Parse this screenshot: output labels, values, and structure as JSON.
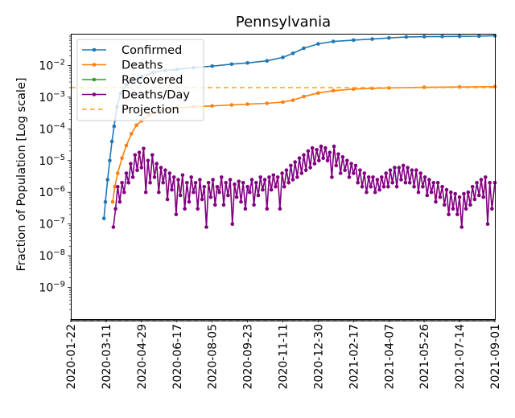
{
  "chart_data": {
    "type": "line",
    "title": "Pennsylvania",
    "xlabel": "",
    "ylabel": "Fraction of Population [Log scale]",
    "yscale": "log",
    "ylim": [
      1e-10,
      0.1
    ],
    "x_range": [
      "2020-01-22",
      "2021-09-01"
    ],
    "x_ticks": [
      "2020-01-22",
      "2020-03-11",
      "2020-04-29",
      "2020-06-17",
      "2020-08-05",
      "2020-09-23",
      "2020-11-11",
      "2020-12-30",
      "2021-02-17",
      "2021-04-07",
      "2021-05-26",
      "2021-07-14",
      "2021-09-01"
    ],
    "y_ticks": [
      {
        "value": 1e-09,
        "base": "10",
        "exp": "−9"
      },
      {
        "value": 1e-08,
        "base": "10",
        "exp": "−8"
      },
      {
        "value": 1e-07,
        "base": "10",
        "exp": "−7"
      },
      {
        "value": 1e-06,
        "base": "10",
        "exp": "−6"
      },
      {
        "value": 1e-05,
        "base": "10",
        "exp": "−5"
      },
      {
        "value": 0.0001,
        "base": "10",
        "exp": "−4"
      },
      {
        "value": 0.001,
        "base": "10",
        "exp": "−3"
      },
      {
        "value": 0.01,
        "base": "10",
        "exp": "−2"
      }
    ],
    "legend_position": "top-left",
    "series": [
      {
        "name": "Confirmed",
        "color": "#1f77b4",
        "style": "line-marker",
        "points": [
          [
            "2020-03-08",
            1.5e-07
          ],
          [
            "2020-03-10",
            5e-07
          ],
          [
            "2020-03-13",
            2.5e-06
          ],
          [
            "2020-03-16",
            1e-05
          ],
          [
            "2020-03-19",
            4e-05
          ],
          [
            "2020-03-22",
            0.00012
          ],
          [
            "2020-03-26",
            0.0005
          ],
          [
            "2020-03-31",
            0.0013
          ],
          [
            "2020-04-08",
            0.0025
          ],
          [
            "2020-04-18",
            0.0035
          ],
          [
            "2020-04-29",
            0.0045
          ],
          [
            "2020-05-15",
            0.006
          ],
          [
            "2020-06-01",
            0.007
          ],
          [
            "2020-06-17",
            0.0075
          ],
          [
            "2020-07-10",
            0.0085
          ],
          [
            "2020-08-05",
            0.0095
          ],
          [
            "2020-09-01",
            0.011
          ],
          [
            "2020-09-23",
            0.012
          ],
          [
            "2020-10-20",
            0.014
          ],
          [
            "2020-11-11",
            0.018
          ],
          [
            "2020-11-25",
            0.024
          ],
          [
            "2020-12-10",
            0.035
          ],
          [
            "2020-12-30",
            0.048
          ],
          [
            "2021-01-20",
            0.057
          ],
          [
            "2021-02-17",
            0.063
          ],
          [
            "2021-03-15",
            0.068
          ],
          [
            "2021-04-07",
            0.074
          ],
          [
            "2021-05-01",
            0.079
          ],
          [
            "2021-05-26",
            0.081
          ],
          [
            "2021-06-20",
            0.082
          ],
          [
            "2021-07-14",
            0.083
          ],
          [
            "2021-08-10",
            0.084
          ],
          [
            "2021-09-01",
            0.087
          ]
        ]
      },
      {
        "name": "Deaths",
        "color": "#ff7f0e",
        "style": "line-marker",
        "points": [
          [
            "2020-03-20",
            5e-07
          ],
          [
            "2020-03-23",
            1.5e-06
          ],
          [
            "2020-03-27",
            4e-06
          ],
          [
            "2020-04-02",
            1.2e-05
          ],
          [
            "2020-04-08",
            3e-05
          ],
          [
            "2020-04-15",
            7e-05
          ],
          [
            "2020-04-22",
            0.00013
          ],
          [
            "2020-04-29",
            0.00018
          ],
          [
            "2020-05-10",
            0.00028
          ],
          [
            "2020-05-25",
            0.00038
          ],
          [
            "2020-06-17",
            0.00045
          ],
          [
            "2020-07-10",
            0.0005
          ],
          [
            "2020-08-05",
            0.00053
          ],
          [
            "2020-09-01",
            0.00057
          ],
          [
            "2020-09-23",
            0.0006
          ],
          [
            "2020-10-20",
            0.00064
          ],
          [
            "2020-11-11",
            0.0007
          ],
          [
            "2020-11-25",
            0.0008
          ],
          [
            "2020-12-10",
            0.00105
          ],
          [
            "2020-12-30",
            0.00135
          ],
          [
            "2021-01-20",
            0.0016
          ],
          [
            "2021-02-17",
            0.0018
          ],
          [
            "2021-03-15",
            0.0019
          ],
          [
            "2021-04-07",
            0.00195
          ],
          [
            "2021-05-26",
            0.00205
          ],
          [
            "2021-07-14",
            0.0021
          ],
          [
            "2021-09-01",
            0.00215
          ]
        ]
      },
      {
        "name": "Recovered",
        "color": "#2ca02c",
        "style": "line-marker",
        "points": []
      },
      {
        "name": "Deaths/Day",
        "color": "#800080",
        "style": "line-marker",
        "points": [
          [
            "2020-03-21",
            8e-08
          ],
          [
            "2020-03-24",
            3e-07
          ],
          [
            "2020-03-27",
            1.5e-06
          ],
          [
            "2020-03-30",
            5e-07
          ],
          [
            "2020-04-02",
            2e-06
          ],
          [
            "2020-04-05",
            1e-06
          ],
          [
            "2020-04-08",
            4e-06
          ],
          [
            "2020-04-11",
            2e-06
          ],
          [
            "2020-04-14",
            8e-06
          ],
          [
            "2020-04-17",
            3e-06
          ],
          [
            "2020-04-20",
            1.5e-05
          ],
          [
            "2020-04-23",
            5e-06
          ],
          [
            "2020-04-26",
            1.8e-05
          ],
          [
            "2020-04-29",
            6e-06
          ],
          [
            "2020-05-02",
            2.4e-05
          ],
          [
            "2020-05-05",
            1e-06
          ],
          [
            "2020-05-08",
            1e-05
          ],
          [
            "2020-05-11",
            2e-06
          ],
          [
            "2020-05-14",
            1.5e-05
          ],
          [
            "2020-05-17",
            3e-06
          ],
          [
            "2020-05-20",
            8e-06
          ],
          [
            "2020-05-23",
            1e-06
          ],
          [
            "2020-05-26",
            6e-06
          ],
          [
            "2020-05-29",
            2e-06
          ],
          [
            "2020-06-01",
            5e-06
          ],
          [
            "2020-06-04",
            6e-07
          ],
          [
            "2020-06-07",
            4e-06
          ],
          [
            "2020-06-10",
            1.2e-06
          ],
          [
            "2020-06-13",
            3e-06
          ],
          [
            "2020-06-16",
            2e-07
          ],
          [
            "2020-06-19",
            2.5e-06
          ],
          [
            "2020-06-22",
            8e-07
          ],
          [
            "2020-06-25",
            3.5e-06
          ],
          [
            "2020-06-28",
            3e-07
          ],
          [
            "2020-07-01",
            2e-06
          ],
          [
            "2020-07-04",
            5e-07
          ],
          [
            "2020-07-07",
            3e-06
          ],
          [
            "2020-07-10",
            1e-06
          ],
          [
            "2020-07-13",
            2e-06
          ],
          [
            "2020-07-16",
            3e-07
          ],
          [
            "2020-07-19",
            2.5e-06
          ],
          [
            "2020-07-22",
            6e-07
          ],
          [
            "2020-07-25",
            1.5e-06
          ],
          [
            "2020-07-28",
            8e-08
          ],
          [
            "2020-07-31",
            2e-06
          ],
          [
            "2020-08-03",
            7e-07
          ],
          [
            "2020-08-06",
            2.5e-06
          ],
          [
            "2020-08-09",
            4e-07
          ],
          [
            "2020-08-12",
            1.5e-06
          ],
          [
            "2020-08-15",
            1e-06
          ],
          [
            "2020-08-18",
            3e-06
          ],
          [
            "2020-08-21",
            4e-07
          ],
          [
            "2020-08-24",
            2e-06
          ],
          [
            "2020-08-27",
            8e-07
          ],
          [
            "2020-08-30",
            2.5e-06
          ],
          [
            "2020-09-02",
            1e-07
          ],
          [
            "2020-09-05",
            1.8e-06
          ],
          [
            "2020-09-08",
            7e-07
          ],
          [
            "2020-09-11",
            2.2e-06
          ],
          [
            "2020-09-14",
            5e-07
          ],
          [
            "2020-09-17",
            2e-06
          ],
          [
            "2020-09-20",
            3e-07
          ],
          [
            "2020-09-23",
            1.5e-06
          ],
          [
            "2020-09-26",
            1e-06
          ],
          [
            "2020-09-29",
            2.5e-06
          ],
          [
            "2020-10-02",
            4e-07
          ],
          [
            "2020-10-05",
            2e-06
          ],
          [
            "2020-10-08",
            8e-07
          ],
          [
            "2020-10-11",
            3e-06
          ],
          [
            "2020-10-14",
            1.2e-06
          ],
          [
            "2020-10-17",
            2.5e-06
          ],
          [
            "2020-10-20",
            3e-07
          ],
          [
            "2020-10-23",
            3e-06
          ],
          [
            "2020-10-26",
            1.2e-06
          ],
          [
            "2020-10-29",
            3.5e-06
          ],
          [
            "2020-11-01",
            1.5e-06
          ],
          [
            "2020-11-04",
            3e-06
          ],
          [
            "2020-11-07",
            3e-07
          ],
          [
            "2020-11-10",
            4e-06
          ],
          [
            "2020-11-13",
            1.5e-06
          ],
          [
            "2020-11-16",
            5e-06
          ],
          [
            "2020-11-19",
            2e-06
          ],
          [
            "2020-11-22",
            7e-06
          ],
          [
            "2020-11-25",
            2.5e-06
          ],
          [
            "2020-11-28",
            9e-06
          ],
          [
            "2020-12-01",
            3e-06
          ],
          [
            "2020-12-04",
            1.2e-05
          ],
          [
            "2020-12-07",
            4e-06
          ],
          [
            "2020-12-10",
            1.5e-05
          ],
          [
            "2020-12-13",
            5e-06
          ],
          [
            "2020-12-16",
            2e-05
          ],
          [
            "2020-12-19",
            6e-06
          ],
          [
            "2020-12-22",
            2.5e-05
          ],
          [
            "2020-12-25",
            8e-06
          ],
          [
            "2020-12-28",
            2.2e-05
          ],
          [
            "2020-12-31",
            1e-05
          ],
          [
            "2021-01-03",
            2.8e-05
          ],
          [
            "2021-01-06",
            1.2e-05
          ],
          [
            "2021-01-09",
            2.5e-05
          ],
          [
            "2021-01-12",
            1e-05
          ],
          [
            "2021-01-15",
            1.8e-05
          ],
          [
            "2021-01-18",
            3e-06
          ],
          [
            "2021-01-21",
            2.8e-05
          ],
          [
            "2021-01-24",
            7e-06
          ],
          [
            "2021-01-27",
            1.6e-05
          ],
          [
            "2021-01-30",
            4e-06
          ],
          [
            "2021-02-02",
            1.3e-05
          ],
          [
            "2021-02-05",
            5e-06
          ],
          [
            "2021-02-08",
            1e-05
          ],
          [
            "2021-02-11",
            3e-06
          ],
          [
            "2021-02-14",
            8e-06
          ],
          [
            "2021-02-17",
            4e-06
          ],
          [
            "2021-02-20",
            7e-06
          ],
          [
            "2021-02-23",
            2e-06
          ],
          [
            "2021-02-26",
            5e-06
          ],
          [
            "2021-03-01",
            1.5e-06
          ],
          [
            "2021-03-04",
            4e-06
          ],
          [
            "2021-03-07",
            1e-06
          ],
          [
            "2021-03-10",
            3e-06
          ],
          [
            "2021-03-13",
            1.5e-06
          ],
          [
            "2021-03-16",
            3e-06
          ],
          [
            "2021-03-19",
            1e-06
          ],
          [
            "2021-03-22",
            2.5e-06
          ],
          [
            "2021-03-25",
            1.2e-06
          ],
          [
            "2021-03-28",
            3e-06
          ],
          [
            "2021-03-31",
            1.5e-06
          ],
          [
            "2021-04-03",
            4e-06
          ],
          [
            "2021-04-06",
            1.5e-06
          ],
          [
            "2021-04-09",
            5e-06
          ],
          [
            "2021-04-12",
            2e-06
          ],
          [
            "2021-04-15",
            6e-06
          ],
          [
            "2021-04-18",
            1.5e-06
          ],
          [
            "2021-04-21",
            6e-06
          ],
          [
            "2021-04-24",
            2.5e-06
          ],
          [
            "2021-04-27",
            7e-06
          ],
          [
            "2021-04-30",
            2e-06
          ],
          [
            "2021-05-03",
            6e-06
          ],
          [
            "2021-05-06",
            2e-06
          ],
          [
            "2021-05-09",
            5e-06
          ],
          [
            "2021-05-12",
            1.5e-06
          ],
          [
            "2021-05-15",
            5e-06
          ],
          [
            "2021-05-18",
            1e-06
          ],
          [
            "2021-05-21",
            4e-06
          ],
          [
            "2021-05-24",
            1.5e-06
          ],
          [
            "2021-05-27",
            3e-06
          ],
          [
            "2021-05-30",
            8e-07
          ],
          [
            "2021-06-02",
            2.5e-06
          ],
          [
            "2021-06-05",
            1e-06
          ],
          [
            "2021-06-08",
            2e-06
          ],
          [
            "2021-06-11",
            5e-07
          ],
          [
            "2021-06-14",
            2e-06
          ],
          [
            "2021-06-17",
            7e-07
          ],
          [
            "2021-06-20",
            1.5e-06
          ],
          [
            "2021-06-23",
            4e-07
          ],
          [
            "2021-06-26",
            1.2e-06
          ],
          [
            "2021-06-29",
            2e-07
          ],
          [
            "2021-07-02",
            1e-06
          ],
          [
            "2021-07-05",
            3e-07
          ],
          [
            "2021-07-08",
            9e-07
          ],
          [
            "2021-07-11",
            2e-07
          ],
          [
            "2021-07-14",
            7e-07
          ],
          [
            "2021-07-17",
            8e-08
          ],
          [
            "2021-07-20",
            9e-07
          ],
          [
            "2021-07-23",
            3e-07
          ],
          [
            "2021-07-26",
            1e-06
          ],
          [
            "2021-07-29",
            4e-07
          ],
          [
            "2021-08-01",
            1.5e-06
          ],
          [
            "2021-08-04",
            6e-07
          ],
          [
            "2021-08-07",
            2e-06
          ],
          [
            "2021-08-10",
            8e-07
          ],
          [
            "2021-08-13",
            2.5e-06
          ],
          [
            "2021-08-16",
            7e-07
          ],
          [
            "2021-08-19",
            3e-06
          ],
          [
            "2021-08-22",
            1e-07
          ],
          [
            "2021-08-25",
            2e-06
          ],
          [
            "2021-08-28",
            3e-07
          ],
          [
            "2021-09-01",
            2e-06
          ]
        ]
      },
      {
        "name": "Projection",
        "color": "#ffa500",
        "style": "dashed",
        "points": [
          [
            "2020-01-22",
            0.002
          ],
          [
            "2021-09-01",
            0.002
          ]
        ]
      }
    ]
  }
}
